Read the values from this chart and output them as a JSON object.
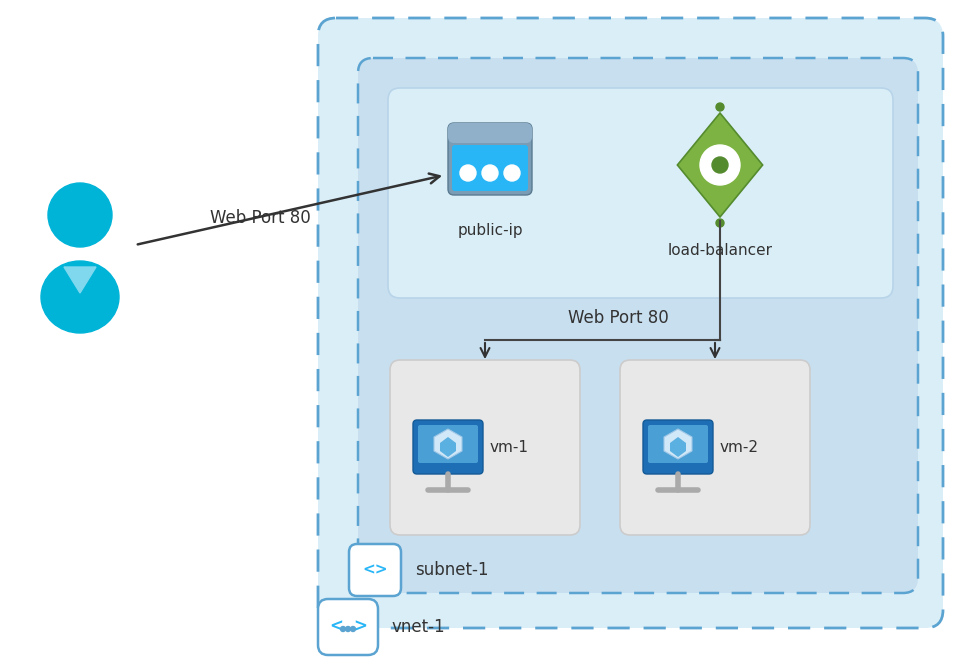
{
  "bg_color": "#ffffff",
  "vnet_facecolor": "#daeef8",
  "vnet_edgecolor": "#5ba3d0",
  "subnet_facecolor": "#c8dff0",
  "subnet_edgecolor": "#5ba3d0",
  "topbox_facecolor": "#daeef8",
  "topbox_edgecolor": "#b8d4e8",
  "vmbox_facecolor": "#e8e8e8",
  "vmbox_edgecolor": "#cccccc",
  "text_color": "#333333",
  "arrow_color": "#333333",
  "user_color": "#00b4d8",
  "user_collar": "#80d8ee",
  "arrow_label": "Web Port 80",
  "lb_label": "Web Port 80",
  "public_ip_label": "public-ip",
  "lb_icon_label": "load-balancer",
  "vm1_label": "vm-1",
  "vm2_label": "vm-2",
  "subnet_label": "subnet-1",
  "vnet_label": "vnet-1"
}
